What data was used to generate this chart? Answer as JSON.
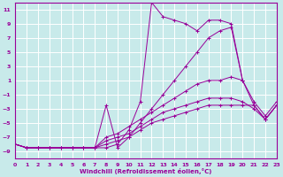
{
  "background_color": "#c8eaea",
  "grid_color": "#ffffff",
  "line_color": "#990099",
  "xlabel": "Windchill (Refroidissement éolien,°C)",
  "xlim": [
    0,
    23
  ],
  "ylim": [
    -10,
    12
  ],
  "yticks": [
    -9,
    -7,
    -5,
    -3,
    -1,
    1,
    3,
    5,
    7,
    9,
    11
  ],
  "xticks": [
    0,
    1,
    2,
    3,
    4,
    5,
    6,
    7,
    8,
    9,
    10,
    11,
    12,
    13,
    14,
    15,
    16,
    17,
    18,
    19,
    20,
    21,
    22,
    23
  ],
  "lines": [
    {
      "x": [
        0,
        1,
        2,
        3,
        4,
        5,
        6,
        7,
        8,
        9,
        10,
        11,
        12,
        13,
        14,
        15,
        16,
        17,
        18,
        19,
        20
      ],
      "y": [
        -8,
        -8.5,
        -8.5,
        -8.5,
        -8.5,
        -8.5,
        -8.5,
        -8.5,
        -8.5,
        -8,
        -6,
        -2,
        12,
        10,
        9.5,
        9,
        8,
        9.5,
        9.5,
        9,
        1
      ]
    },
    {
      "x": [
        0,
        1,
        2,
        3,
        4,
        5,
        6,
        7,
        8,
        9,
        10,
        11,
        12,
        13,
        14,
        15,
        16,
        17,
        18,
        19,
        20,
        21,
        22,
        23
      ],
      "y": [
        -8,
        -8.5,
        -8.5,
        -8.5,
        -8.5,
        -8.5,
        -8.5,
        -8.5,
        -8,
        -7.5,
        -7,
        -6,
        -5,
        -4.5,
        -4,
        -3.5,
        -3,
        -2.5,
        -2.5,
        -2.5,
        -2.5,
        -2.5,
        -4.5,
        -2.5
      ]
    },
    {
      "x": [
        0,
        1,
        2,
        3,
        4,
        5,
        6,
        7,
        8,
        9,
        10,
        11,
        12,
        13,
        14,
        15,
        16,
        17,
        18,
        19,
        20,
        21,
        22,
        23
      ],
      "y": [
        -8,
        -8.5,
        -8.5,
        -8.5,
        -8.5,
        -8.5,
        -8.5,
        -8.5,
        -7.5,
        -7,
        -6.5,
        -5.5,
        -4.5,
        -3.5,
        -3,
        -2.5,
        -2,
        -1.5,
        -1.5,
        -1.5,
        -2,
        -3,
        -4.5,
        -2.5
      ]
    },
    {
      "x": [
        0,
        1,
        2,
        3,
        4,
        5,
        6,
        7,
        8,
        9,
        10,
        11,
        12,
        13,
        14,
        15,
        16,
        17,
        18,
        19,
        20,
        21,
        22,
        23
      ],
      "y": [
        -8,
        -8.5,
        -8.5,
        -8.5,
        -8.5,
        -8.5,
        -8.5,
        -8.5,
        -7,
        -6.5,
        -5.5,
        -4.5,
        -3.5,
        -2.5,
        -1.5,
        -0.5,
        0.5,
        1,
        1,
        1.5,
        1,
        -2.5,
        -4.5,
        -2.5
      ]
    },
    {
      "x": [
        0,
        1,
        2,
        3,
        4,
        5,
        6,
        7,
        8,
        9,
        10,
        11,
        12,
        13,
        14,
        15,
        16,
        17,
        18,
        19,
        20,
        21,
        22,
        23
      ],
      "y": [
        -8,
        -8.5,
        -8.5,
        -8.5,
        -8.5,
        -8.5,
        -8.5,
        -8.5,
        -2.5,
        -8.5,
        -7,
        -5,
        -3,
        -1,
        1,
        3,
        5,
        7,
        8,
        8.5,
        1,
        -2,
        -4,
        -2
      ]
    }
  ]
}
